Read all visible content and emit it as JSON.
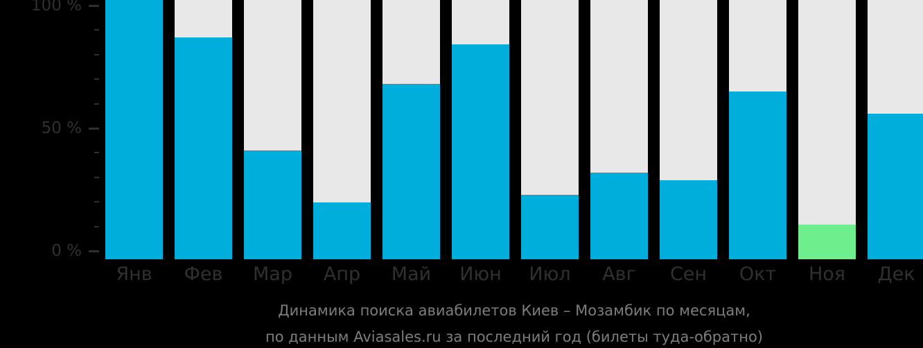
{
  "chart_data": {
    "type": "bar",
    "title": "Динамика поиска авиабилетов Киев – Мозамбик по месяцам,",
    "subtitle": "по данным Aviasales.ru за последний год (билеты туда-обратно)",
    "categories": [
      "Янв",
      "Фев",
      "Мар",
      "Апр",
      "Май",
      "Июн",
      "Июл",
      "Авг",
      "Сен",
      "Окт",
      "Ноя",
      "Дек"
    ],
    "values": [
      100,
      87,
      41,
      20,
      68,
      84,
      23,
      32,
      29,
      65,
      11,
      56
    ],
    "unit": "%",
    "ylim": [
      0,
      100
    ],
    "grid": false,
    "legend": false,
    "y_axis": {
      "major_ticks": [
        {
          "value": 100,
          "label": "100 %"
        },
        {
          "value": 50,
          "label": "50 %"
        },
        {
          "value": 0,
          "label": "0 %"
        }
      ],
      "minor_tick_values": [
        90,
        80,
        70,
        60,
        40,
        30,
        20,
        10
      ]
    },
    "highlighted_bar": {
      "category": "Ноя",
      "color": "#6FEE8D"
    },
    "colors": {
      "bar": "#00AEDC",
      "bar_highlight": "#6FEE8D",
      "bar_background_track": "#E8E8E8",
      "page_background": "#000000",
      "axis_text": "#303030",
      "caption_text": "#7D7D7D"
    }
  }
}
